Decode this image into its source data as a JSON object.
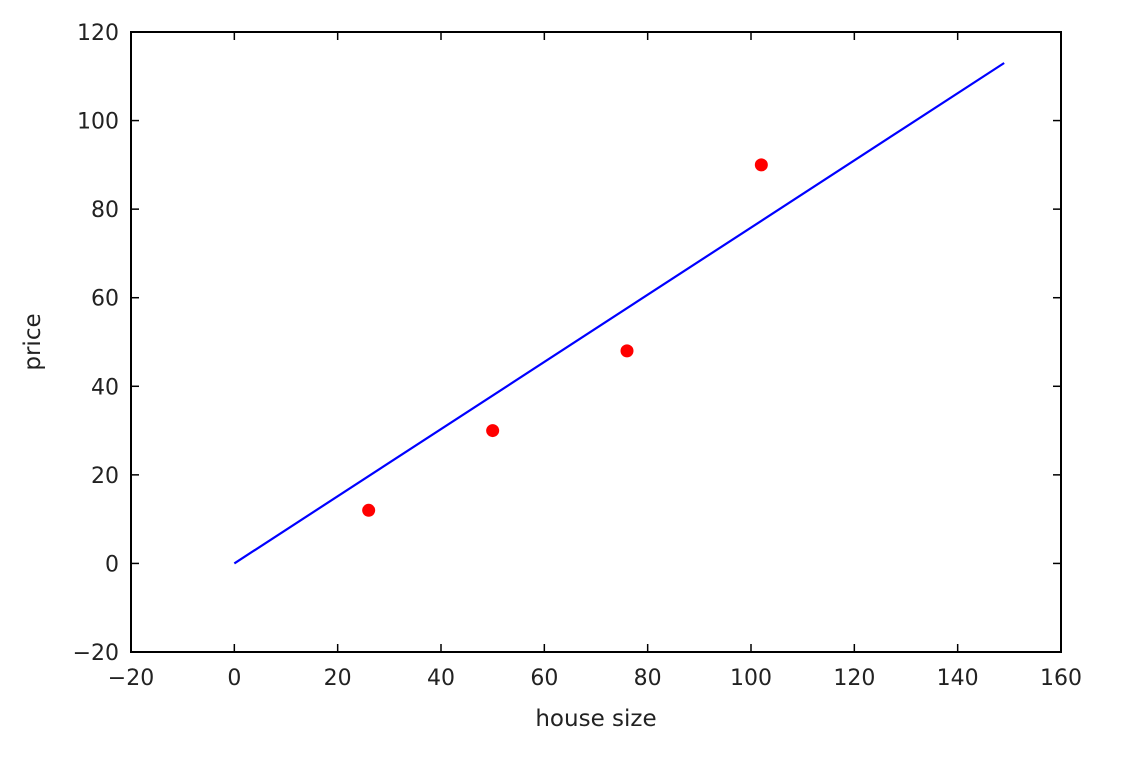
{
  "chart_data": {
    "type": "scatter",
    "title": "",
    "xlabel": "house size",
    "ylabel": "price",
    "xlim": [
      -20,
      160
    ],
    "ylim": [
      -20,
      120
    ],
    "xticks": [
      "−20",
      "0",
      "20",
      "40",
      "60",
      "80",
      "100",
      "120",
      "140",
      "160"
    ],
    "xtick_values": [
      -20,
      0,
      20,
      40,
      60,
      80,
      100,
      120,
      140,
      160
    ],
    "yticks": [
      "−20",
      "0",
      "20",
      "40",
      "60",
      "80",
      "100",
      "120"
    ],
    "ytick_values": [
      -20,
      0,
      20,
      40,
      60,
      80,
      100,
      120
    ],
    "grid": false,
    "series": [
      {
        "kind": "scatter",
        "color": "#ff0000",
        "x": [
          26,
          50,
          76,
          102
        ],
        "y": [
          12,
          30,
          48,
          90
        ]
      },
      {
        "kind": "line",
        "color": "#0000ff",
        "x": [
          0,
          149
        ],
        "y": [
          0,
          113
        ]
      }
    ]
  }
}
